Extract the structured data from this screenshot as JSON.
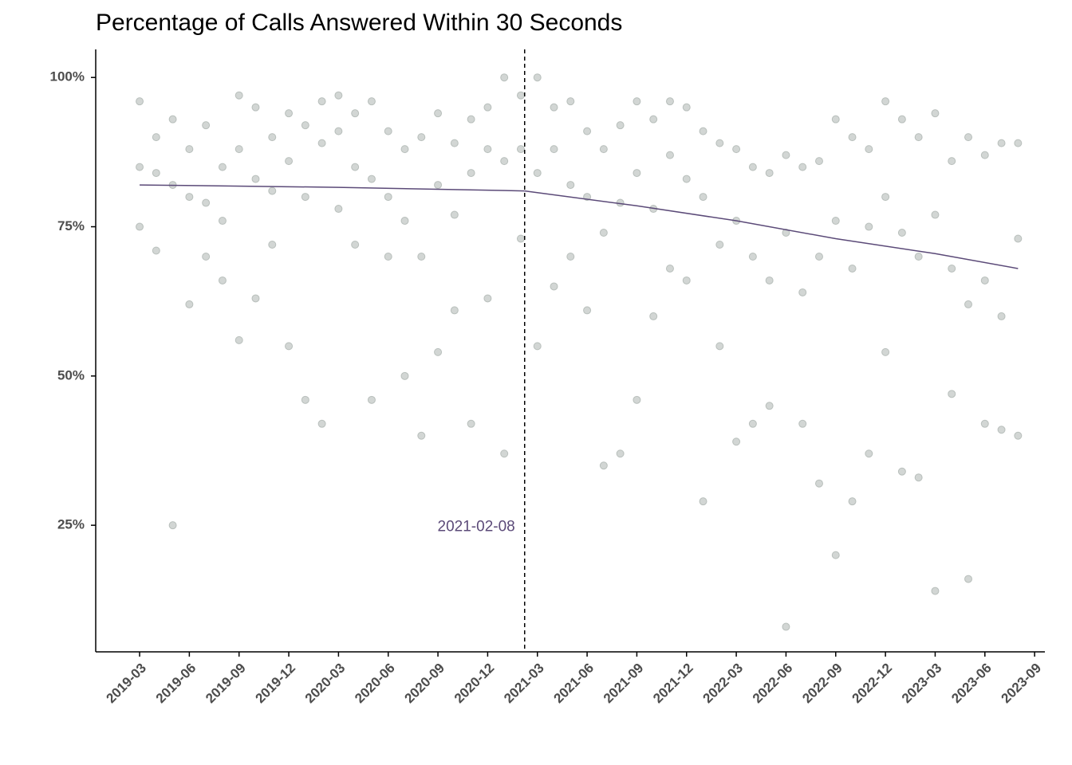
{
  "chart_data": {
    "type": "scatter",
    "title": "Percentage of Calls Answered Within 30 Seconds",
    "x": [
      "2019-03",
      "2019-03",
      "2019-03",
      "2019-04",
      "2019-04",
      "2019-04",
      "2019-05",
      "2019-05",
      "2019-05",
      "2019-06",
      "2019-06",
      "2019-06",
      "2019-07",
      "2019-07",
      "2019-07",
      "2019-08",
      "2019-08",
      "2019-08",
      "2019-09",
      "2019-09",
      "2019-09",
      "2019-10",
      "2019-10",
      "2019-10",
      "2019-11",
      "2019-11",
      "2019-11",
      "2019-12",
      "2019-12",
      "2019-12",
      "2020-01",
      "2020-01",
      "2020-01",
      "2020-02",
      "2020-02",
      "2020-02",
      "2020-03",
      "2020-03",
      "2020-03",
      "2020-04",
      "2020-04",
      "2020-04",
      "2020-05",
      "2020-05",
      "2020-05",
      "2020-06",
      "2020-06",
      "2020-06",
      "2020-07",
      "2020-07",
      "2020-07",
      "2020-08",
      "2020-08",
      "2020-08",
      "2020-09",
      "2020-09",
      "2020-09",
      "2020-10",
      "2020-10",
      "2020-10",
      "2020-11",
      "2020-11",
      "2020-11",
      "2020-12",
      "2020-12",
      "2020-12",
      "2021-01",
      "2021-01",
      "2021-01",
      "2021-02",
      "2021-02",
      "2021-02",
      "2021-03",
      "2021-03",
      "2021-03",
      "2021-04",
      "2021-04",
      "2021-04",
      "2021-05",
      "2021-05",
      "2021-05",
      "2021-06",
      "2021-06",
      "2021-06",
      "2021-07",
      "2021-07",
      "2021-07",
      "2021-08",
      "2021-08",
      "2021-08",
      "2021-09",
      "2021-09",
      "2021-09",
      "2021-10",
      "2021-10",
      "2021-10",
      "2021-11",
      "2021-11",
      "2021-11",
      "2021-12",
      "2021-12",
      "2021-12",
      "2022-01",
      "2022-01",
      "2022-01",
      "2022-02",
      "2022-02",
      "2022-02",
      "2022-03",
      "2022-03",
      "2022-03",
      "2022-04",
      "2022-04",
      "2022-04",
      "2022-05",
      "2022-05",
      "2022-05",
      "2022-06",
      "2022-06",
      "2022-06",
      "2022-07",
      "2022-07",
      "2022-07",
      "2022-08",
      "2022-08",
      "2022-08",
      "2022-09",
      "2022-09",
      "2022-09",
      "2022-10",
      "2022-10",
      "2022-10",
      "2022-11",
      "2022-11",
      "2022-11",
      "2022-12",
      "2022-12",
      "2022-12",
      "2023-01",
      "2023-01",
      "2023-01",
      "2023-02",
      "2023-02",
      "2023-02",
      "2023-03",
      "2023-03",
      "2023-03",
      "2023-04",
      "2023-04",
      "2023-04",
      "2023-05",
      "2023-05",
      "2023-05",
      "2023-06",
      "2023-06",
      "2023-06",
      "2023-07",
      "2023-07",
      "2023-07",
      "2023-08",
      "2023-08",
      "2023-08"
    ],
    "values": [
      96,
      85,
      75,
      90,
      84,
      71,
      93,
      82,
      25,
      88,
      80,
      62,
      92,
      79,
      70,
      85,
      76,
      66,
      97,
      88,
      56,
      95,
      83,
      63,
      90,
      81,
      72,
      94,
      86,
      55,
      92,
      80,
      46,
      96,
      89,
      42,
      97,
      91,
      78,
      94,
      85,
      72,
      96,
      83,
      46,
      91,
      80,
      70,
      88,
      76,
      50,
      90,
      70,
      40,
      94,
      82,
      54,
      89,
      77,
      61,
      93,
      84,
      42,
      95,
      88,
      63,
      100,
      86,
      37,
      97,
      88,
      73,
      100,
      84,
      55,
      95,
      88,
      65,
      96,
      82,
      70,
      91,
      80,
      61,
      88,
      74,
      35,
      92,
      79,
      37,
      96,
      84,
      46,
      93,
      78,
      60,
      96,
      87,
      68,
      95,
      83,
      66,
      91,
      80,
      29,
      89,
      72,
      55,
      88,
      76,
      39,
      85,
      70,
      42,
      84,
      66,
      45,
      87,
      74,
      8,
      85,
      64,
      42,
      86,
      70,
      32,
      93,
      76,
      20,
      90,
      68,
      29,
      88,
      75,
      37,
      96,
      80,
      54,
      93,
      74,
      34,
      90,
      70,
      33,
      94,
      77,
      14,
      86,
      68,
      47,
      90,
      62,
      16,
      87,
      66,
      42,
      89,
      60,
      41,
      89,
      73,
      40
    ],
    "color": "#a5aea9",
    "trend_color": "#5b4a78",
    "trend": [
      {
        "x": [
          "2019-03",
          "2020-03",
          "2021-02-08"
        ],
        "values": [
          82,
          81.6,
          81
        ]
      },
      {
        "x": [
          "2021-02-08",
          "2021-09",
          "2022-03",
          "2022-09",
          "2023-03",
          "2023-08"
        ],
        "values": [
          81,
          78.5,
          76,
          73,
          70.5,
          68
        ]
      }
    ],
    "vline_x": "2021-02-08",
    "xlim": [
      "2018-12",
      "2023-10"
    ],
    "xticks": [
      "2019-03",
      "2019-06",
      "2019-09",
      "2019-12",
      "2020-03",
      "2020-06",
      "2020-09",
      "2020-12",
      "2021-03",
      "2021-06",
      "2021-09",
      "2021-12",
      "2022-03",
      "2022-06",
      "2022-09",
      "2022-12",
      "2023-03",
      "2023-06",
      "2023-09"
    ],
    "ylim": [
      3.8,
      104.7
    ],
    "yticks": [
      {
        "value": 25,
        "label": "25%"
      },
      {
        "value": 50,
        "label": "50%"
      },
      {
        "value": 75,
        "label": "75%"
      },
      {
        "value": 100,
        "label": "100%"
      }
    ],
    "grid": false
  }
}
